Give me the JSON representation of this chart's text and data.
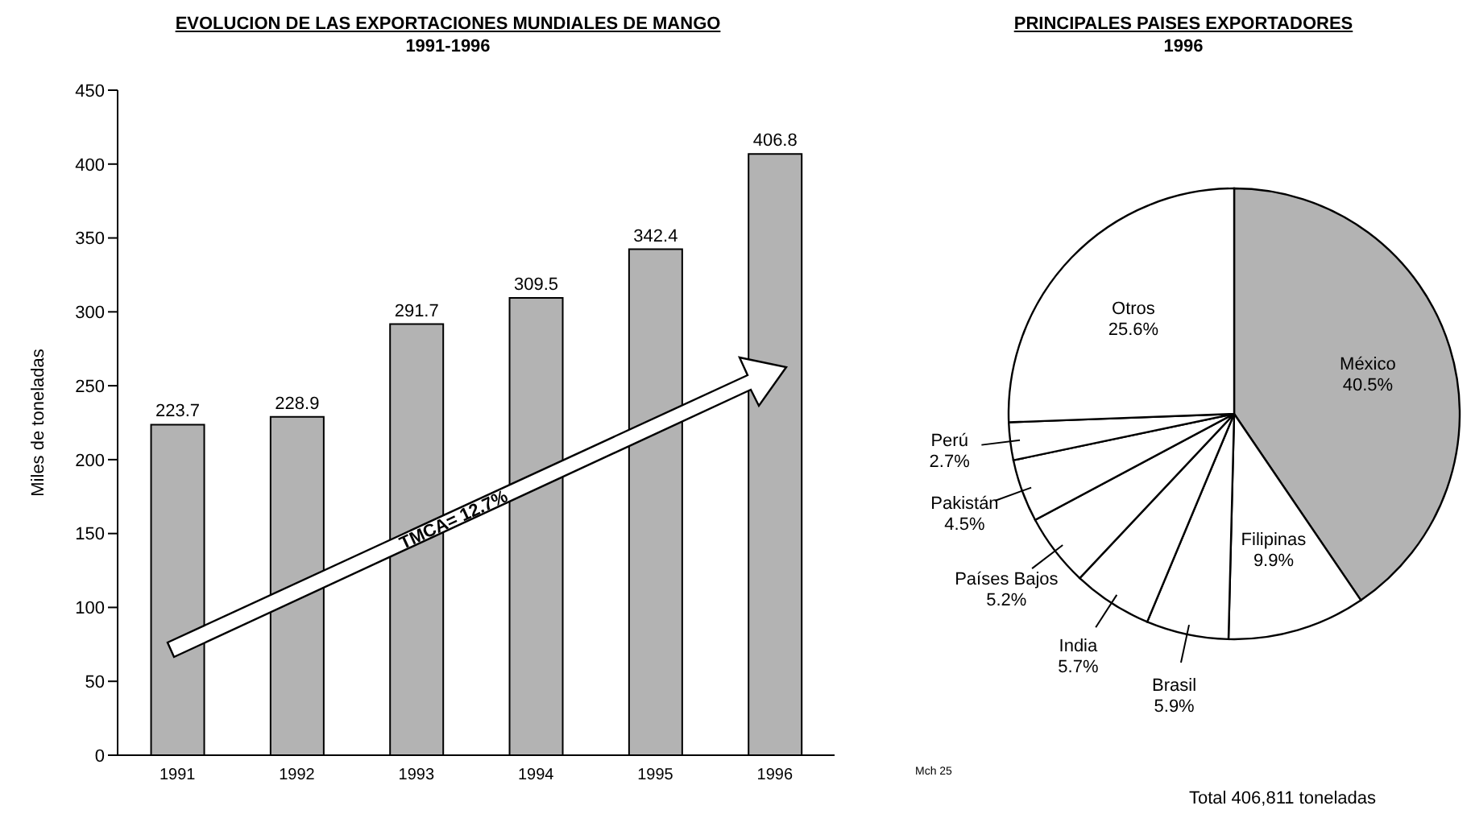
{
  "chart_data": [
    {
      "type": "bar",
      "title": "EVOLUCION DE LAS EXPORTACIONES MUNDIALES DE MANGO",
      "subtitle": "1991-1996",
      "ylabel": "Miles de toneladas",
      "categories": [
        "1991",
        "1992",
        "1993",
        "1994",
        "1995",
        "1996"
      ],
      "values": [
        223.7,
        228.9,
        291.7,
        309.5,
        342.4,
        406.8
      ],
      "color": "#b3b3b3",
      "ylim": [
        0,
        450
      ],
      "yticks": [
        0,
        50,
        100,
        150,
        200,
        250,
        300,
        350,
        400,
        450
      ],
      "data_labels": true,
      "grid": false,
      "legend": false,
      "annotations": [
        "TMCA= 12.7%"
      ]
    },
    {
      "type": "pie",
      "title": "PRINCIPALES PAISES EXPORTADORES",
      "subtitle": "1996",
      "categories": [
        "México",
        "Filipinas",
        "Brasil",
        "India",
        "Países  Bajos",
        "Pakistán",
        "Perú",
        "Otros"
      ],
      "values": [
        40.5,
        9.9,
        5.9,
        5.7,
        5.2,
        4.5,
        2.7,
        25.6
      ],
      "colors": [
        "#b3b3b3",
        "#ffffff",
        "#ffffff",
        "#ffffff",
        "#ffffff",
        "#ffffff",
        "#ffffff",
        "#ffffff"
      ],
      "value_labels": [
        "40.5%",
        "9.9%",
        "5.9%",
        "5.7%",
        "5.2%",
        "4.5%",
        "2.7%",
        "25.6%"
      ],
      "legend": false,
      "annotations": [
        "Mch 25",
        "Total 406,811 toneladas"
      ]
    }
  ]
}
